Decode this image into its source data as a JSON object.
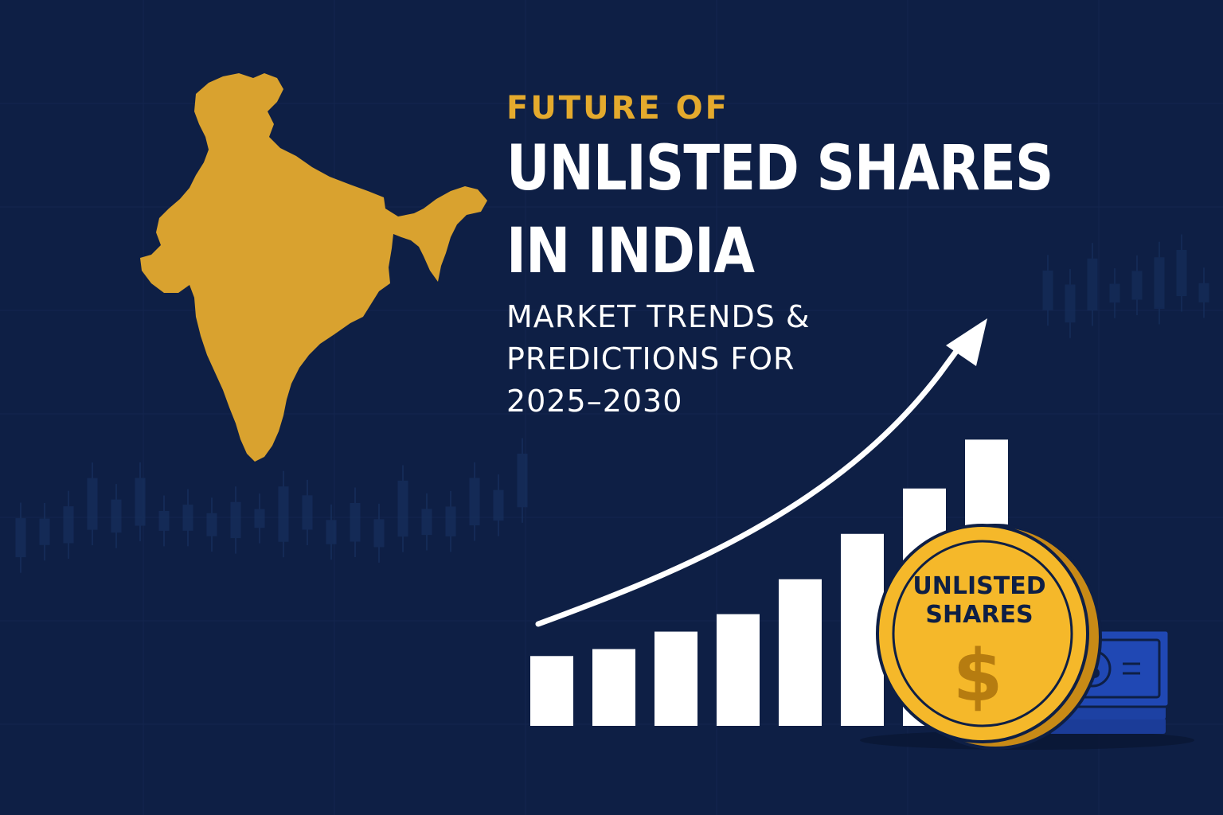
{
  "headline": {
    "kicker": "FUTURE OF",
    "title_line1": "UNLISTED SHARES",
    "title_line2": "IN INDIA",
    "subtitle_line1": "MARKET TRENDS &",
    "subtitle_line2": "PREDICTIONS FOR",
    "subtitle_line3": "2025–2030"
  },
  "coin": {
    "line1": "UNLISTED",
    "line2": "SHARES",
    "symbol": "$"
  },
  "banknote": {
    "symbol": "$"
  },
  "colors": {
    "background": "#0e1f45",
    "gold": "#e4aa2d",
    "map": "#d9a22f",
    "bar": "#ffffff",
    "coin": "#f5b82a",
    "banknote": "#1f45b0"
  },
  "bar_growth": {
    "values": [
      1,
      1.1,
      1.35,
      1.6,
      2.1,
      2.75,
      3.4,
      4.1
    ]
  },
  "icons": [
    "india-map-icon",
    "upward-arrow-icon",
    "coin-icon",
    "banknote-icon",
    "candlestick-background"
  ]
}
